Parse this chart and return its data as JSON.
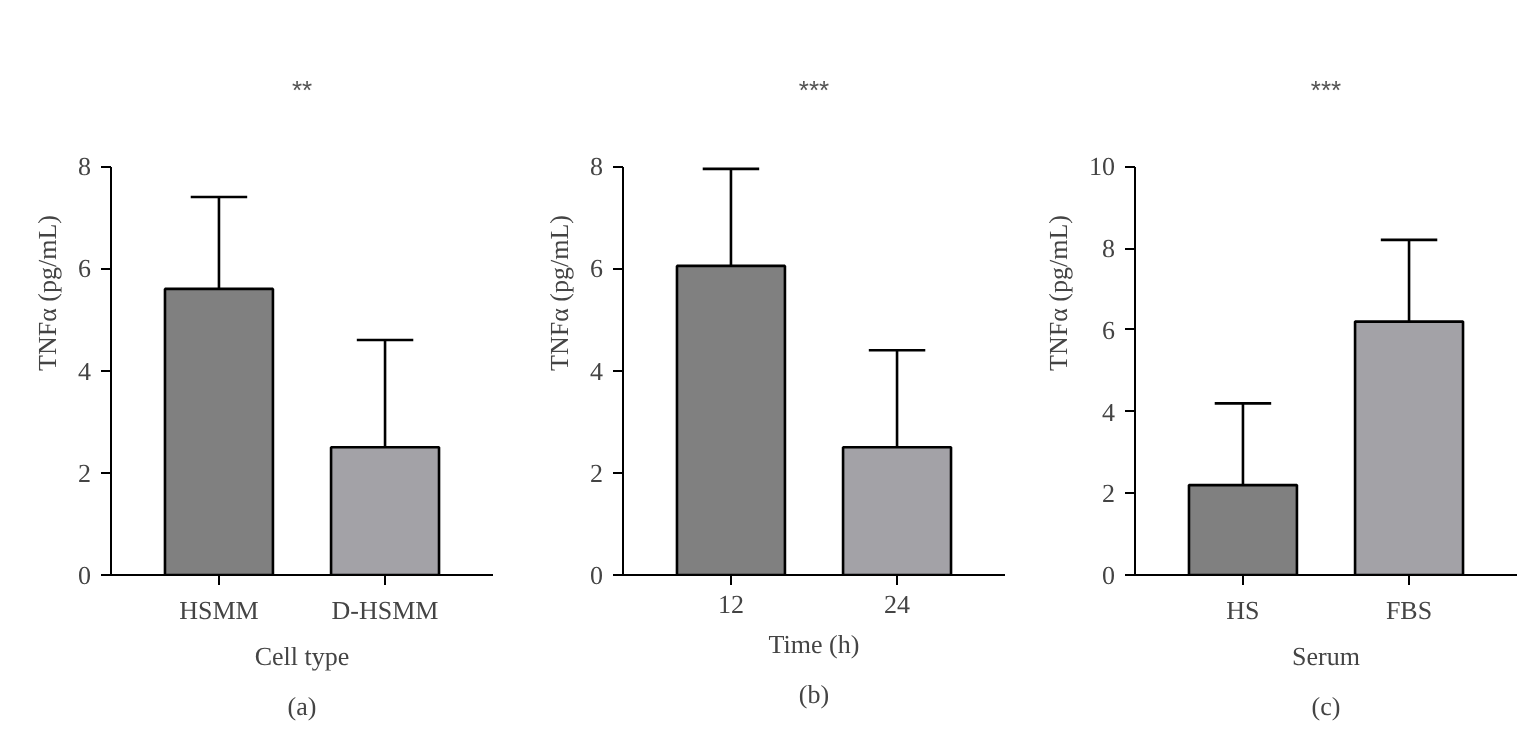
{
  "chart_data": [
    {
      "type": "bar",
      "categories": [
        "HSMM",
        "D-HSMM"
      ],
      "values": [
        5.6,
        2.5
      ],
      "colors": [
        "#808080",
        "#a3a2a7"
      ],
      "errors": [
        [
          5.6,
          7.4
        ],
        [
          2.5,
          4.6
        ]
      ],
      "ylim": [
        0,
        8
      ],
      "yticks": [
        0,
        2,
        4,
        6,
        8
      ],
      "xlabel": "Cell type",
      "ylabel": "TNFα (pg/mL)",
      "grid": false,
      "annotations": [
        "**",
        "(a)"
      ]
    },
    {
      "type": "bar",
      "categories": [
        "12",
        "24"
      ],
      "values": [
        6.05,
        2.5
      ],
      "colors": [
        "#808080",
        "#a3a2a7"
      ],
      "errors": [
        [
          6.05,
          7.95
        ],
        [
          2.5,
          4.4
        ]
      ],
      "ylim": [
        0,
        8
      ],
      "yticks": [
        0,
        2,
        4,
        6,
        8
      ],
      "xlabel": "Time (h)",
      "ylabel": "TNFα (pg/mL)",
      "grid": false,
      "annotations": [
        "***",
        "(b)"
      ]
    },
    {
      "type": "bar",
      "categories": [
        "HS",
        "FBS"
      ],
      "values": [
        2.2,
        6.2
      ],
      "colors": [
        "#808080",
        "#a3a2a7"
      ],
      "errors": [
        [
          2.2,
          4.2
        ],
        [
          6.2,
          8.2
        ]
      ],
      "ylim": [
        0,
        10
      ],
      "yticks": [
        0,
        2,
        4,
        6,
        8,
        10
      ],
      "xlabel": "Serum",
      "ylabel": "TNFα (pg/mL)",
      "grid": false,
      "annotations": [
        "***",
        "(c)"
      ]
    }
  ]
}
